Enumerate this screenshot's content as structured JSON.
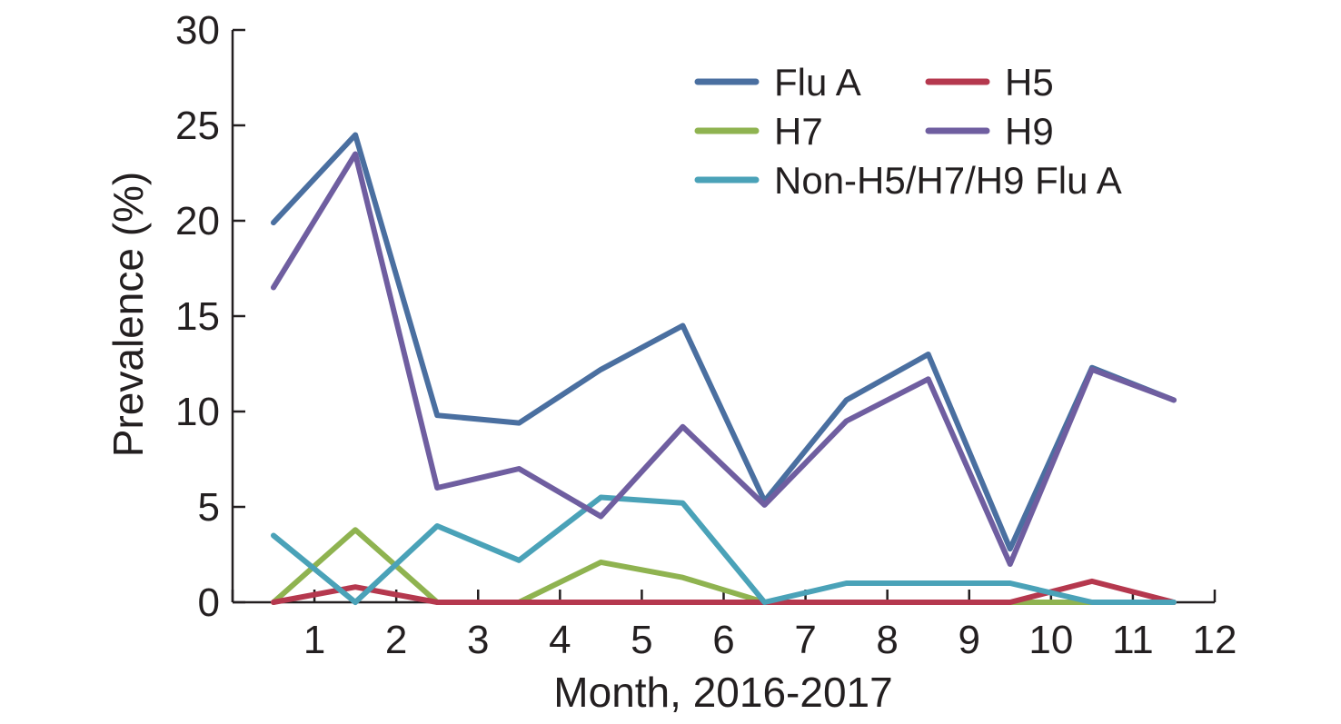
{
  "chart_data": {
    "type": "line",
    "xlabel": "Month, 2016-2017",
    "ylabel": "Prevalence (%)",
    "xlim": [
      0,
      12
    ],
    "ylim": [
      0,
      30
    ],
    "x_ticks": [
      "1",
      "2",
      "3",
      "4",
      "5",
      "6",
      "7",
      "8",
      "9",
      "10",
      "11",
      "12"
    ],
    "y_ticks": [
      "0",
      "5",
      "10",
      "15",
      "20",
      "25",
      "30"
    ],
    "x": [
      0.5,
      1.5,
      2.5,
      3.5,
      4.5,
      5.5,
      6.5,
      7.5,
      8.5,
      9.5,
      10.5,
      11.5
    ],
    "grid": false,
    "legend_position": "top-right",
    "series": [
      {
        "name": "Flu A",
        "color": "#4a6fa0",
        "values": [
          19.9,
          24.5,
          9.8,
          9.4,
          12.2,
          14.5,
          5.3,
          10.6,
          13.0,
          2.8,
          12.3,
          10.6
        ]
      },
      {
        "name": "H5",
        "color": "#b5384e",
        "values": [
          0,
          0.8,
          0,
          0,
          0,
          0,
          0,
          0,
          0,
          0,
          1.1,
          0
        ]
      },
      {
        "name": "H7",
        "color": "#8fb350",
        "values": [
          0,
          3.8,
          0,
          0,
          2.1,
          1.3,
          0,
          0,
          0,
          0,
          0,
          0
        ]
      },
      {
        "name": "H9",
        "color": "#6f5ea0",
        "values": [
          16.5,
          23.5,
          6.0,
          7.0,
          4.5,
          9.2,
          5.1,
          9.5,
          11.7,
          2.0,
          12.2,
          10.6
        ]
      },
      {
        "name": "Non-H5/H7/H9 Flu A",
        "color": "#4aa2b8",
        "values": [
          3.5,
          0,
          4.0,
          2.2,
          5.5,
          5.2,
          0,
          1.0,
          1.0,
          1.0,
          0,
          0
        ]
      }
    ]
  }
}
